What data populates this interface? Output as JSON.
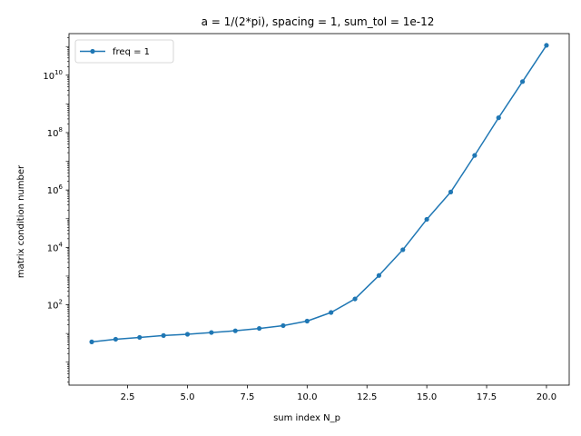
{
  "chart_data": {
    "type": "line",
    "title": "a = 1/(2*pi), spacing = 1, sum_tol = 1e-12",
    "xlabel": "sum index N_p",
    "ylabel": "matrix condition number",
    "xlim": [
      0.05,
      20.95
    ],
    "ylim_log10": [
      -0.8,
      11.45
    ],
    "yscale": "log",
    "grid": false,
    "legend_position": "top-left",
    "x_ticks": [
      2.5,
      5.0,
      7.5,
      10.0,
      12.5,
      15.0,
      17.5,
      20.0
    ],
    "x_tick_labels": [
      "2.5",
      "5.0",
      "7.5",
      "10.0",
      "12.5",
      "15.0",
      "17.5",
      "20.0"
    ],
    "y_ticks": [
      {
        "value": 100,
        "base": "10",
        "exp": "2"
      },
      {
        "value": 10000,
        "base": "10",
        "exp": "4"
      },
      {
        "value": 1000000,
        "base": "10",
        "exp": "6"
      },
      {
        "value": 100000000,
        "base": "10",
        "exp": "8"
      },
      {
        "value": 10000000000,
        "base": "10",
        "exp": "10"
      }
    ],
    "series": [
      {
        "name": "freq = 1",
        "color": "#1f77b4",
        "marker": "circle",
        "x": [
          1,
          2,
          3,
          4,
          5,
          6,
          7,
          8,
          9,
          10,
          11,
          12,
          13,
          14,
          15,
          16,
          17,
          18,
          19,
          20
        ],
        "y": [
          5.1,
          6.3,
          7.3,
          8.5,
          9.4,
          10.8,
          12.4,
          15.0,
          18.8,
          27,
          54,
          160,
          1050,
          8300,
          95000,
          850000,
          16000000,
          330000000,
          6000000000,
          110000000000
        ]
      }
    ]
  }
}
